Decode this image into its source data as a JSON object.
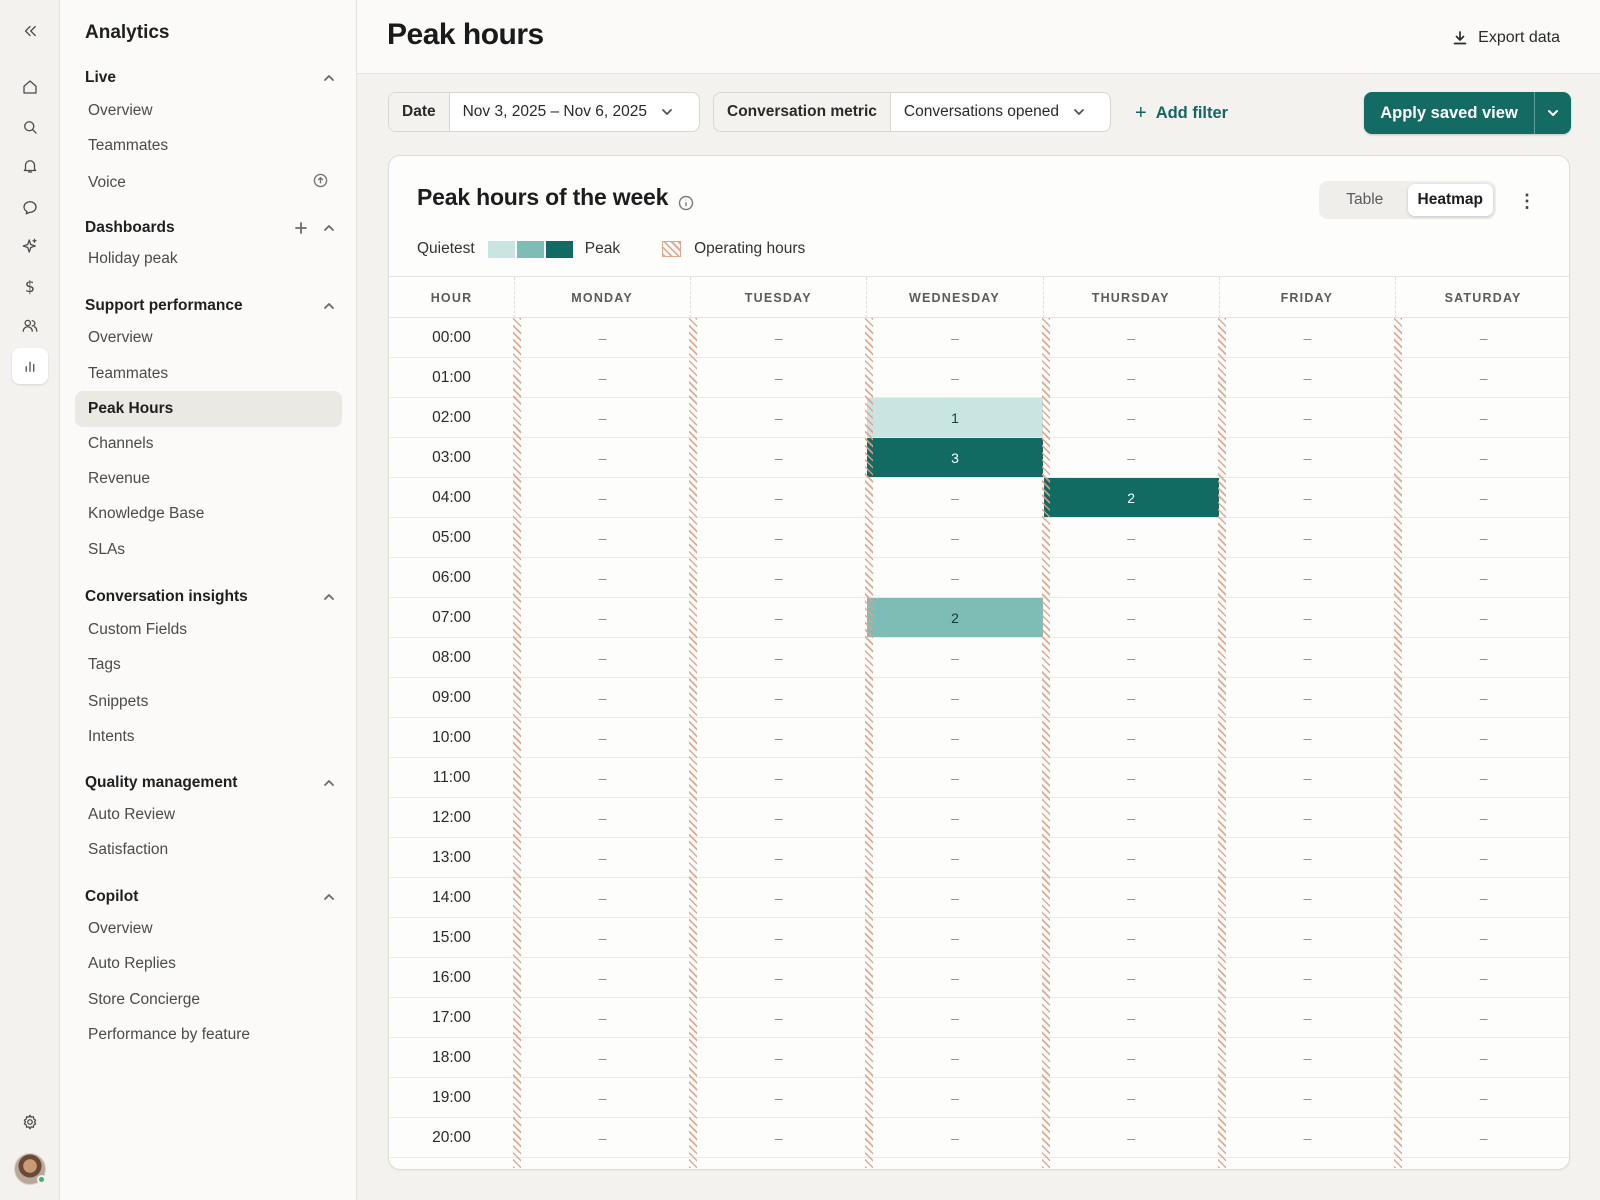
{
  "rail": {
    "collapse_icon": "double-chevron-left-icon",
    "items": [
      "home-icon",
      "search-icon",
      "bell-icon",
      "chat-icon",
      "sparkle-icon",
      "dollar-icon",
      "users-icon",
      "chart-icon"
    ],
    "active": "chart-icon",
    "settings_icon": "gear-icon"
  },
  "sidebar": {
    "title": "Analytics",
    "sections": [
      {
        "title": "Live",
        "items": [
          "Overview",
          "Teammates",
          "Voice"
        ]
      },
      {
        "title": "Dashboards",
        "items": [
          "Holiday peak"
        ]
      },
      {
        "title": "Support performance",
        "items": [
          "Overview",
          "Teammates",
          "Peak Hours",
          "Channels",
          "Revenue",
          "Knowledge Base",
          "SLAs"
        ]
      },
      {
        "title": "Conversation insights",
        "items": [
          "Custom Fields",
          "Tags",
          "Snippets",
          "Intents"
        ]
      },
      {
        "title": "Quality management",
        "items": [
          "Auto Review",
          "Satisfaction"
        ]
      },
      {
        "title": "Copilot",
        "items": [
          "Overview",
          "Auto Replies",
          "Store Concierge",
          "Performance by feature"
        ]
      }
    ],
    "active_item": "Peak Hours"
  },
  "header": {
    "title": "Peak hours",
    "export_label": "Export data"
  },
  "filters": {
    "date_label": "Date",
    "date_value": "Nov 3, 2025 – Nov 6, 2025",
    "metric_label": "Conversation metric",
    "metric_value": "Conversations opened",
    "add_filter_label": "Add filter",
    "apply_label": "Apply saved view"
  },
  "card": {
    "title": "Peak hours of the week",
    "toggle": {
      "table": "Table",
      "heatmap": "Heatmap",
      "selected": "Heatmap"
    },
    "legend": {
      "quietest": "Quietest",
      "peak": "Peak",
      "operating": "Operating hours"
    },
    "colors": {
      "level1": "#c8e5e1",
      "level2": "#7dbdb5",
      "level3": "#116b63",
      "operating_hatch": "#e39e86"
    }
  },
  "chart_data": {
    "type": "heatmap",
    "title": "Peak hours of the week",
    "columns_header": "HOUR",
    "days": [
      "MONDAY",
      "TUESDAY",
      "WEDNESDAY",
      "THURSDAY",
      "FRIDAY",
      "SATURDAY"
    ],
    "hours": [
      "00:00",
      "01:00",
      "02:00",
      "03:00",
      "04:00",
      "05:00",
      "06:00",
      "07:00",
      "08:00",
      "09:00",
      "10:00",
      "11:00",
      "12:00",
      "13:00",
      "14:00",
      "15:00",
      "16:00",
      "17:00",
      "18:00",
      "19:00",
      "20:00"
    ],
    "empty_symbol": "–",
    "values": [
      {
        "day": "WEDNESDAY",
        "hour": "02:00",
        "value": 1
      },
      {
        "day": "WEDNESDAY",
        "hour": "03:00",
        "value": 3
      },
      {
        "day": "THURSDAY",
        "hour": "04:00",
        "value": 2
      },
      {
        "day": "WEDNESDAY",
        "hour": "07:00",
        "value": 2
      }
    ],
    "levels": [
      {
        "day": "WEDNESDAY",
        "hour": "02:00",
        "level": 1
      },
      {
        "day": "WEDNESDAY",
        "hour": "03:00",
        "level": 3
      },
      {
        "day": "THURSDAY",
        "hour": "04:00",
        "level": 3
      },
      {
        "day": "WEDNESDAY",
        "hour": "07:00",
        "level": 2
      }
    ]
  }
}
